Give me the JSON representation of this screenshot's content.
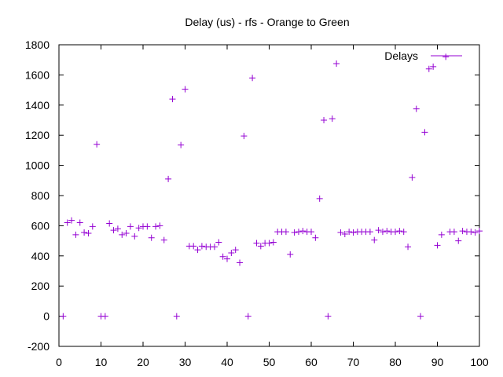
{
  "chart_data": {
    "type": "scatter",
    "title": "Delay (us) - rfs - Orange to Green",
    "xlabel": "",
    "ylabel": "",
    "xlim": [
      0,
      100
    ],
    "ylim": [
      -200,
      1800
    ],
    "xticks": [
      0,
      10,
      20,
      30,
      40,
      50,
      60,
      70,
      80,
      90,
      100
    ],
    "yticks": [
      -200,
      0,
      200,
      400,
      600,
      800,
      1000,
      1200,
      1400,
      1600,
      1800
    ],
    "grid": false,
    "legend": "top-right",
    "marker": "plus",
    "series": [
      {
        "name": "Delays",
        "color": "#9400d3",
        "points": [
          [
            1,
            0
          ],
          [
            2,
            620
          ],
          [
            3,
            635
          ],
          [
            4,
            540
          ],
          [
            5,
            620
          ],
          [
            6,
            555
          ],
          [
            7,
            550
          ],
          [
            8,
            595
          ],
          [
            9,
            1140
          ],
          [
            10,
            0
          ],
          [
            11,
            0
          ],
          [
            12,
            615
          ],
          [
            13,
            570
          ],
          [
            14,
            580
          ],
          [
            15,
            540
          ],
          [
            16,
            550
          ],
          [
            17,
            595
          ],
          [
            18,
            530
          ],
          [
            19,
            585
          ],
          [
            20,
            595
          ],
          [
            21,
            595
          ],
          [
            22,
            520
          ],
          [
            23,
            595
          ],
          [
            24,
            600
          ],
          [
            25,
            505
          ],
          [
            26,
            910
          ],
          [
            27,
            1440
          ],
          [
            28,
            0
          ],
          [
            29,
            1135
          ],
          [
            30,
            1505
          ],
          [
            31,
            465
          ],
          [
            32,
            465
          ],
          [
            33,
            440
          ],
          [
            34,
            465
          ],
          [
            35,
            460
          ],
          [
            36,
            460
          ],
          [
            37,
            460
          ],
          [
            38,
            490
          ],
          [
            39,
            395
          ],
          [
            40,
            380
          ],
          [
            41,
            420
          ],
          [
            42,
            440
          ],
          [
            43,
            355
          ],
          [
            44,
            1195
          ],
          [
            45,
            0
          ],
          [
            46,
            1580
          ],
          [
            47,
            485
          ],
          [
            48,
            465
          ],
          [
            49,
            485
          ],
          [
            50,
            485
          ],
          [
            51,
            490
          ],
          [
            52,
            560
          ],
          [
            53,
            560
          ],
          [
            54,
            560
          ],
          [
            55,
            410
          ],
          [
            56,
            555
          ],
          [
            57,
            560
          ],
          [
            58,
            565
          ],
          [
            59,
            560
          ],
          [
            60,
            560
          ],
          [
            61,
            520
          ],
          [
            62,
            780
          ],
          [
            63,
            1300
          ],
          [
            64,
            0
          ],
          [
            65,
            1310
          ],
          [
            66,
            1675
          ],
          [
            67,
            555
          ],
          [
            68,
            545
          ],
          [
            69,
            560
          ],
          [
            70,
            555
          ],
          [
            71,
            560
          ],
          [
            72,
            560
          ],
          [
            73,
            560
          ],
          [
            74,
            560
          ],
          [
            75,
            505
          ],
          [
            76,
            570
          ],
          [
            77,
            560
          ],
          [
            78,
            565
          ],
          [
            79,
            560
          ],
          [
            80,
            560
          ],
          [
            81,
            565
          ],
          [
            82,
            560
          ],
          [
            83,
            460
          ],
          [
            84,
            920
          ],
          [
            85,
            1375
          ],
          [
            86,
            0
          ],
          [
            87,
            1220
          ],
          [
            88,
            1640
          ],
          [
            89,
            1655
          ],
          [
            90,
            470
          ],
          [
            91,
            540
          ],
          [
            92,
            1720
          ],
          [
            93,
            560
          ],
          [
            94,
            560
          ],
          [
            95,
            500
          ],
          [
            96,
            565
          ],
          [
            97,
            560
          ],
          [
            98,
            560
          ],
          [
            99,
            555
          ],
          [
            100,
            565
          ]
        ]
      }
    ]
  }
}
